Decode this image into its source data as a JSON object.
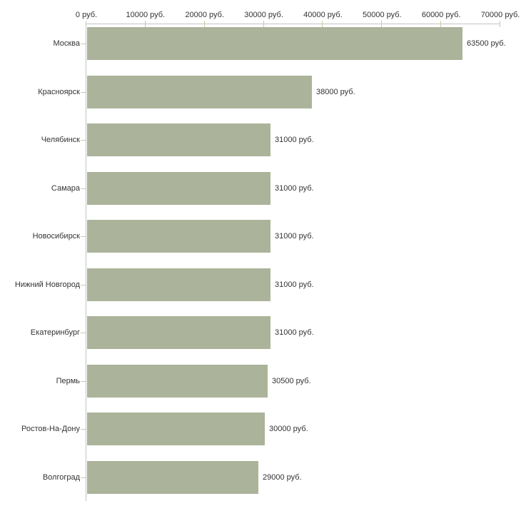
{
  "chart_data": {
    "type": "bar",
    "orientation": "horizontal",
    "title": "",
    "xlabel": "",
    "ylabel": "",
    "x_unit": "руб.",
    "xlim": [
      0,
      70000
    ],
    "grid": false,
    "legend": false,
    "x_ticks": [
      {
        "value": 0,
        "label": "0 руб."
      },
      {
        "value": 10000,
        "label": "10000 руб."
      },
      {
        "value": 20000,
        "label": "20000 руб."
      },
      {
        "value": 30000,
        "label": "30000 руб."
      },
      {
        "value": 40000,
        "label": "40000 руб."
      },
      {
        "value": 50000,
        "label": "50000 руб."
      },
      {
        "value": 60000,
        "label": "60000 руб."
      },
      {
        "value": 70000,
        "label": "70000 руб."
      }
    ],
    "categories": [
      "Москва",
      "Красноярск",
      "Челябинск",
      "Самара",
      "Новосибирск",
      "Нижний Новгород",
      "Екатеринбург",
      "Пермь",
      "Ростов-На-Дону",
      "Волгоград"
    ],
    "values": [
      63500,
      38000,
      31000,
      31000,
      31000,
      31000,
      31000,
      30500,
      30000,
      29000
    ],
    "bar_labels": [
      "63500 руб.",
      "38000 руб.",
      "31000 руб.",
      "31000 руб.",
      "31000 руб.",
      "31000 руб.",
      "31000 руб.",
      "30500 руб.",
      "30000 руб.",
      "29000 руб."
    ],
    "colors": {
      "bar": "#abb39a",
      "axis_line": "#c3c3c3",
      "tick": "#c9c9ab",
      "text": "#333333",
      "background": "#ffffff"
    }
  }
}
